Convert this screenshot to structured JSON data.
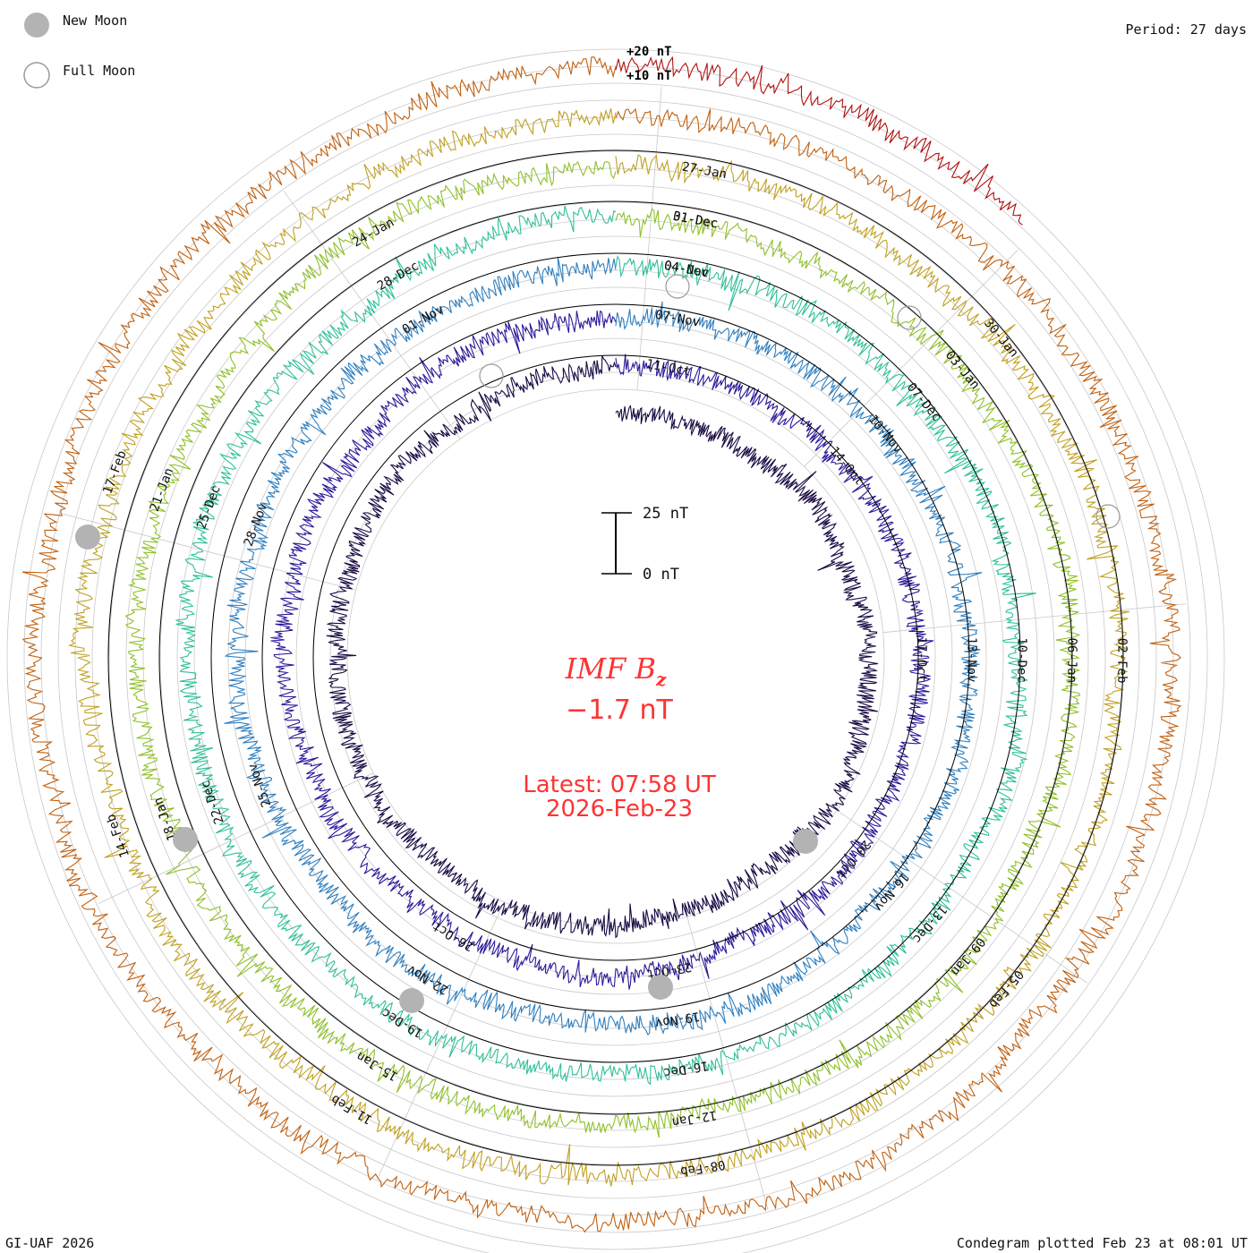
{
  "legend": {
    "new_moon_label": "New Moon",
    "full_moon_label": "Full Moon",
    "new_moon_color": "#b3b3b3",
    "full_moon_color": "#9a9a9a"
  },
  "header": {
    "period": "Period: 27 days",
    "scale_plus20": "+20 nT",
    "scale_plus10": "+10 nT"
  },
  "scale_bar": {
    "top_label": "25 nT",
    "bottom_label": "0 nT"
  },
  "center": {
    "title_main": "IMF B",
    "title_sub": "z",
    "value": "−1.7 nT",
    "latest_line1": "Latest: 07:58 UT",
    "latest_line2": "2026-Feb-23",
    "color": "#ff3333"
  },
  "footer": {
    "left": "GI-UAF 2026",
    "right": "Condegram plotted Feb 23 at 08:01 UT"
  },
  "chart_data": {
    "type": "line",
    "title": "IMF Bz",
    "period_days": 27,
    "units": "nT",
    "latest_value": -1.7,
    "latest_time": "2026-02-23 07:58 UT",
    "series": [
      {
        "name": "rotation-1",
        "color": "#1a0a44",
        "start": "2025-10-08",
        "labels": [
          "11-Oct",
          "14-Oct",
          "17-Oct",
          "20-Oct",
          "23-Oct",
          "26-Oct"
        ]
      },
      {
        "name": "rotation-2",
        "color": "#2a1a9a",
        "start": "2025-11-04",
        "labels": [
          "07-Nov",
          "10-Nov",
          "13-Nov",
          "16-Nov",
          "19-Nov",
          "22-Nov",
          "25-Nov",
          "28-Nov",
          "01-Nov",
          "04-Nov"
        ]
      },
      {
        "name": "rotation-3",
        "color": "#2f6fbf",
        "start": "2025-12-01",
        "labels": [
          "04-Dec",
          "07-Dec",
          "10-Dec",
          "13-Dec",
          "16-Dec",
          "19-Dec",
          "22-Dec",
          "25-Dec",
          "28-Dec",
          "01-Dec"
        ]
      },
      {
        "name": "rotation-4",
        "color": "#2fbfa0",
        "start": "2025-12-28",
        "labels": [
          "31-Dec",
          "03-Jan",
          "06-Jan",
          "09-Jan",
          "12-Jan",
          "15-Jan",
          "18-Jan",
          "21-Jan",
          "24-Jan"
        ]
      },
      {
        "name": "rotation-5",
        "color": "#8fc02a",
        "start": "2026-01-24",
        "labels": [
          "27-Jan",
          "30-Jan",
          "02-Feb",
          "05-Feb",
          "08-Feb",
          "11-Feb",
          "14-Feb",
          "17-Feb"
        ]
      },
      {
        "name": "rotation-6",
        "color": "#c0300a",
        "start": "2026-02-20",
        "labels": []
      }
    ],
    "ring_colors": [
      "#1a0a44",
      "#2a1a9a",
      "#2f7fbf",
      "#2fbf9a",
      "#8fc02a",
      "#c0a020",
      "#c06010",
      "#b01010"
    ],
    "moon_markers": {
      "new": [
        "19-Nov",
        "20-Oct",
        "19-Dec",
        "18-Jan",
        "17-Feb"
      ],
      "full": [
        "04-Dec",
        "03-Jan",
        "02-Feb",
        "04-Nov"
      ]
    }
  }
}
